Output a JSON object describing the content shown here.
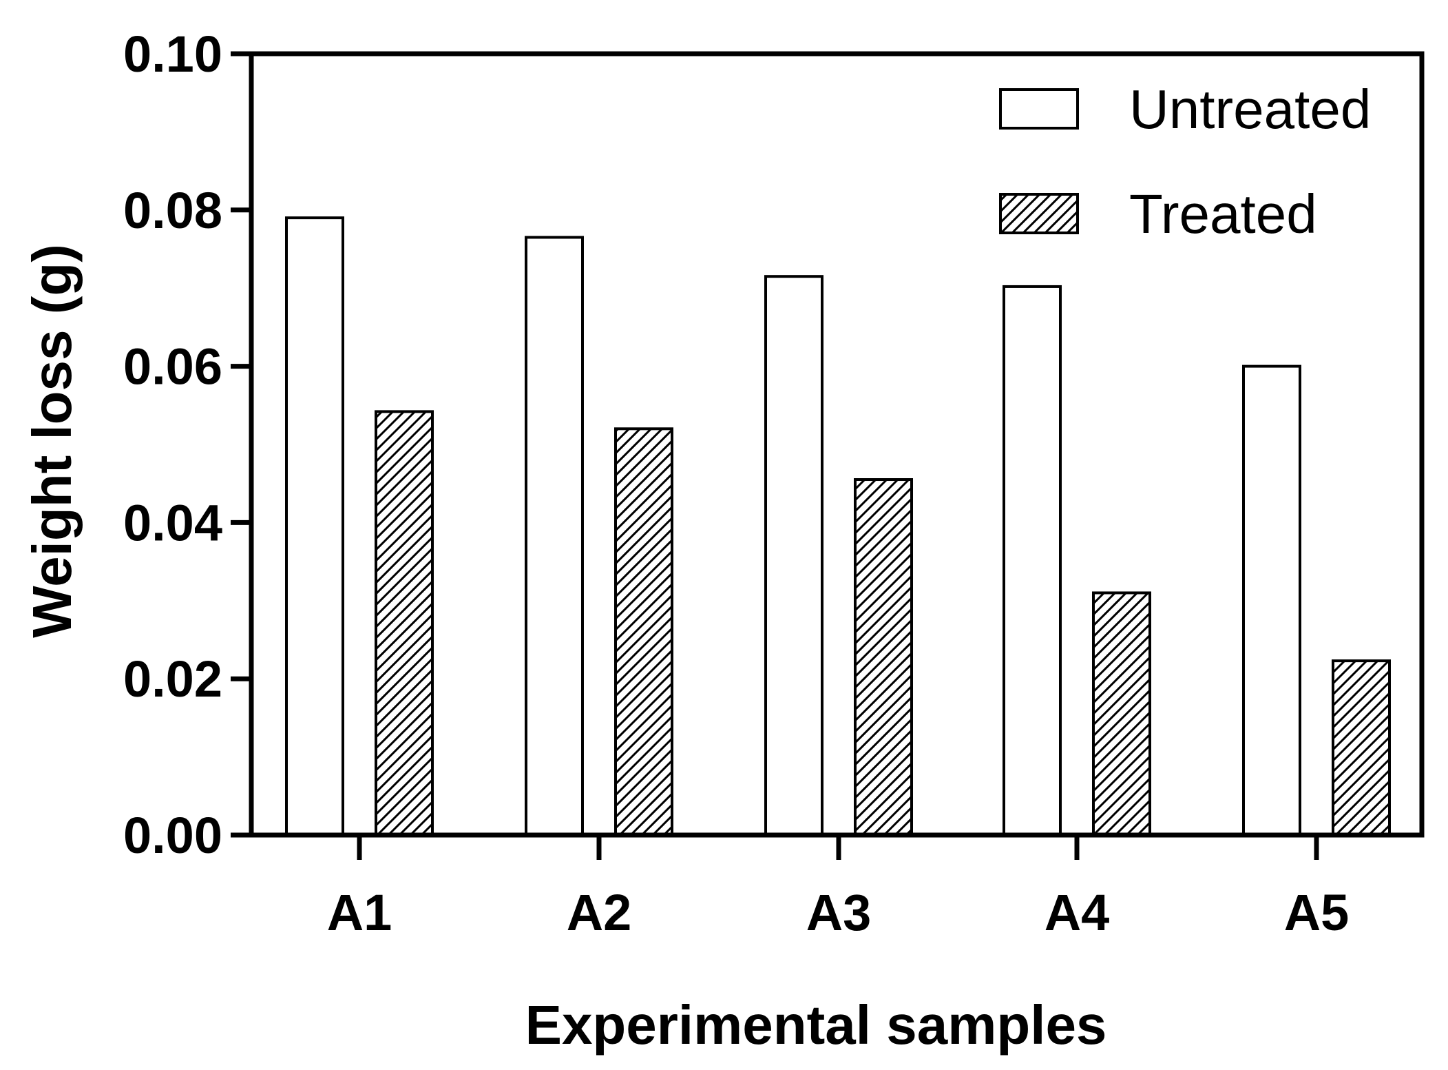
{
  "chart_data": {
    "type": "bar",
    "title": "",
    "xlabel": "Experimental samples",
    "ylabel": "Weight loss (g)",
    "categories": [
      "A1",
      "A2",
      "A3",
      "A4",
      "A5"
    ],
    "ylim": [
      0,
      0.1
    ],
    "yticks": [
      "0.00",
      "0.02",
      "0.04",
      "0.06",
      "0.08",
      "0.10"
    ],
    "grid": false,
    "legend_position": "top-right",
    "series": [
      {
        "name": "Untreated",
        "pattern": "none",
        "values": [
          0.079,
          0.0765,
          0.0715,
          0.0702,
          0.06
        ]
      },
      {
        "name": "Treated",
        "pattern": "hatch",
        "values": [
          0.0542,
          0.052,
          0.0455,
          0.031,
          0.0223
        ]
      }
    ],
    "colors": {
      "axis": "#000000",
      "bar_fill": "#ffffff",
      "hatch": "#000000"
    }
  }
}
